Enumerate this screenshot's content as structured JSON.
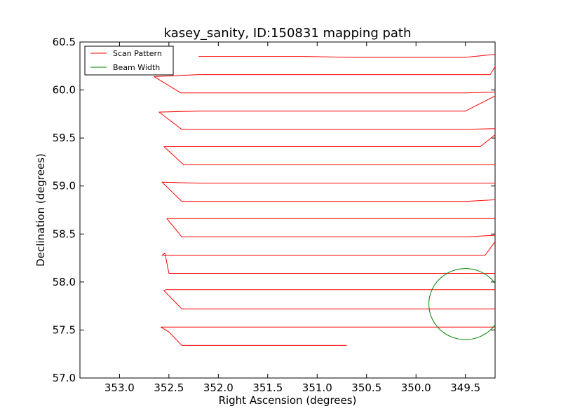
{
  "chart_data": {
    "type": "line",
    "title": "kasey_sanity, ID:150831 mapping path",
    "xlabel": "Right Ascension (degrees)",
    "ylabel": "Declination (degrees)",
    "xlim": [
      353.4,
      349.2
    ],
    "ylim": [
      57.0,
      60.5
    ],
    "x_reversed": true,
    "xticks": [
      353.0,
      352.5,
      352.0,
      351.5,
      351.0,
      350.5,
      350.0,
      349.5
    ],
    "xtick_labels": [
      "353.0",
      "352.5",
      "352.0",
      "351.5",
      "351.0",
      "350.5",
      "350.0",
      "349.5"
    ],
    "yticks": [
      57.0,
      57.5,
      58.0,
      58.5,
      59.0,
      59.5,
      60.0,
      60.5
    ],
    "ytick_labels": [
      "57.0",
      "57.5",
      "58.0",
      "58.5",
      "59.0",
      "59.5",
      "60.0",
      "60.5"
    ],
    "grid": false,
    "legend_position": "top-left",
    "series": [
      {
        "name": "Scan Pattern",
        "color": "#ff0000",
        "x": [
          350.7,
          351.0,
          351.3,
          351.6,
          352.0,
          352.37,
          352.5,
          352.58,
          352.52,
          352.2,
          351.8,
          351.5,
          351.1,
          350.7,
          350.3,
          349.9,
          349.5,
          349.15,
          349.12,
          349.5,
          349.9,
          350.3,
          350.7,
          351.1,
          351.5,
          351.8,
          352.2,
          352.37,
          352.55,
          352.53,
          352.2,
          351.8,
          351.5,
          351.1,
          350.7,
          350.3,
          349.9,
          349.5,
          349.2,
          349.13,
          349.5,
          349.9,
          350.3,
          350.7,
          351.1,
          351.5,
          351.8,
          352.2,
          352.5,
          352.54,
          352.57,
          352.2,
          351.8,
          351.5,
          351.1,
          350.7,
          350.3,
          349.9,
          349.5,
          349.3,
          349.15,
          349.5,
          349.9,
          350.3,
          350.7,
          351.1,
          351.5,
          351.8,
          352.2,
          352.37,
          352.52,
          352.2,
          351.8,
          351.5,
          351.1,
          350.7,
          350.3,
          349.9,
          349.5,
          349.2,
          349.13,
          349.5,
          349.9,
          350.3,
          350.7,
          351.1,
          351.5,
          351.8,
          352.2,
          352.37,
          352.57,
          352.2,
          351.8,
          351.5,
          351.1,
          350.7,
          350.3,
          349.9,
          349.5,
          349.2,
          349.15,
          349.5,
          349.9,
          350.3,
          350.7,
          351.1,
          351.5,
          351.8,
          352.2,
          352.35,
          352.55,
          352.2,
          351.8,
          351.5,
          351.1,
          350.7,
          350.3,
          349.9,
          349.35,
          349.12,
          349.5,
          349.9,
          350.3,
          350.7,
          351.1,
          351.5,
          351.8,
          352.2,
          352.37,
          352.6,
          352.2,
          351.8,
          351.5,
          351.1,
          350.7,
          350.3,
          349.9,
          349.5,
          349.12,
          349.5,
          349.9,
          350.3,
          350.7,
          351.1,
          351.5,
          351.8,
          352.2,
          352.38,
          352.65,
          352.2,
          351.8,
          351.5,
          351.1,
          350.7,
          350.3,
          349.9,
          349.5,
          349.25,
          349.12,
          349.5,
          349.9,
          350.3,
          350.7,
          351.1,
          351.5,
          351.8,
          352.2
        ],
        "y": [
          57.34,
          57.34,
          57.34,
          57.34,
          57.34,
          57.34,
          57.48,
          57.53,
          57.53,
          57.53,
          57.53,
          57.53,
          57.53,
          57.53,
          57.53,
          57.53,
          57.53,
          57.53,
          57.72,
          57.72,
          57.72,
          57.72,
          57.72,
          57.72,
          57.72,
          57.72,
          57.72,
          57.72,
          57.91,
          57.92,
          57.92,
          57.92,
          57.92,
          57.92,
          57.92,
          57.92,
          57.92,
          57.92,
          57.92,
          58.09,
          58.09,
          58.09,
          58.09,
          58.09,
          58.09,
          58.09,
          58.09,
          58.09,
          58.09,
          58.3,
          58.28,
          58.28,
          58.28,
          58.28,
          58.28,
          58.28,
          58.28,
          58.28,
          58.28,
          58.28,
          58.49,
          58.47,
          58.47,
          58.47,
          58.47,
          58.47,
          58.47,
          58.47,
          58.47,
          58.47,
          58.66,
          58.66,
          58.66,
          58.66,
          58.66,
          58.66,
          58.66,
          58.66,
          58.66,
          58.66,
          58.86,
          58.84,
          58.84,
          58.84,
          58.84,
          58.84,
          58.84,
          58.84,
          58.84,
          58.84,
          59.04,
          59.03,
          59.03,
          59.03,
          59.03,
          59.03,
          59.03,
          59.03,
          59.03,
          59.03,
          59.22,
          59.22,
          59.22,
          59.22,
          59.22,
          59.22,
          59.22,
          59.22,
          59.22,
          59.22,
          59.41,
          59.41,
          59.41,
          59.41,
          59.41,
          59.41,
          59.41,
          59.41,
          59.41,
          59.6,
          59.59,
          59.59,
          59.59,
          59.59,
          59.59,
          59.59,
          59.59,
          59.59,
          59.59,
          59.77,
          59.78,
          59.78,
          59.78,
          59.78,
          59.78,
          59.78,
          59.78,
          59.78,
          59.98,
          59.97,
          59.97,
          59.97,
          59.97,
          59.97,
          59.97,
          59.97,
          59.97,
          59.97,
          60.14,
          60.16,
          60.16,
          60.16,
          60.16,
          60.16,
          60.16,
          60.16,
          60.16,
          60.16,
          60.38,
          60.34,
          60.34,
          60.34,
          60.34,
          60.35,
          60.35,
          60.35,
          60.35
        ]
      },
      {
        "name": "Beam Width",
        "color": "#008000",
        "shape": "circle",
        "center": [
          349.5,
          57.77
        ],
        "radius_deg": 0.37
      }
    ]
  }
}
